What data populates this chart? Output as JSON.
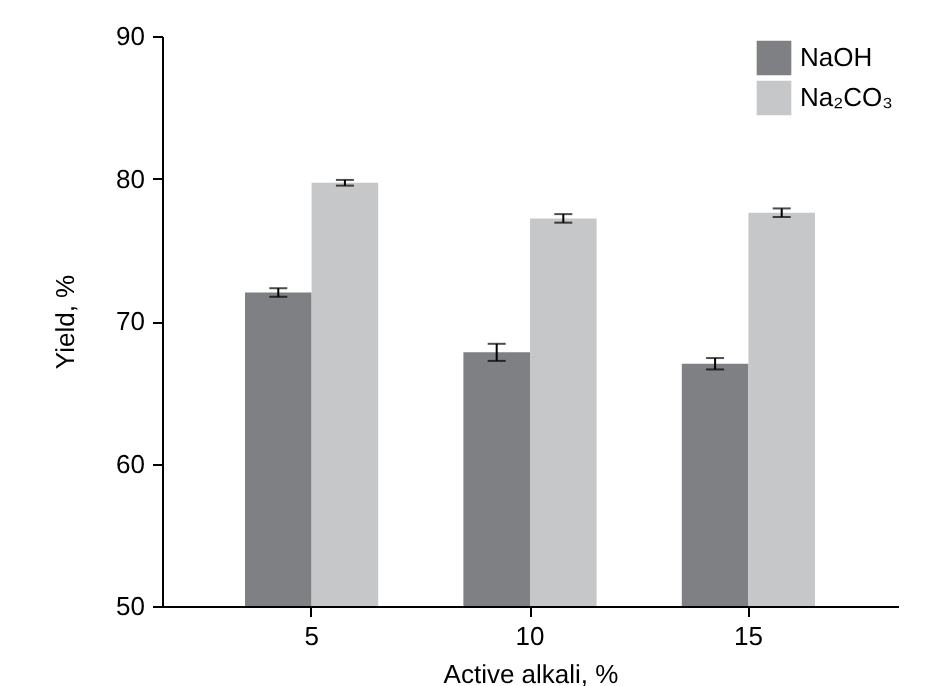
{
  "chart_data": {
    "type": "bar",
    "xlabel": "Active alkali, %",
    "ylabel": "Yield, %",
    "categories": [
      "5",
      "10",
      "15"
    ],
    "series": [
      {
        "name": "NaOH",
        "color": "#7f8084",
        "values": [
          72.0,
          67.8,
          67.0
        ],
        "errors": [
          0.3,
          0.6,
          0.4
        ]
      },
      {
        "name": "Na₂CO₃",
        "color": "#c6c7c9",
        "values": [
          79.7,
          77.2,
          77.6
        ],
        "errors": [
          0.2,
          0.3,
          0.3
        ]
      }
    ],
    "ylim": [
      50,
      90
    ],
    "yticks": [
      50,
      60,
      70,
      80,
      90
    ],
    "grid": false,
    "legend": "top right"
  }
}
